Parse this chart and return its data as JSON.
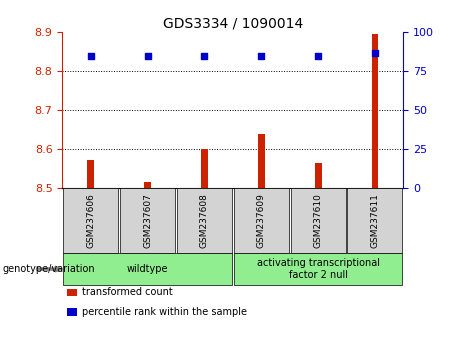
{
  "title": "GDS3334 / 1090014",
  "samples": [
    "GSM237606",
    "GSM237607",
    "GSM237608",
    "GSM237609",
    "GSM237610",
    "GSM237611"
  ],
  "red_bar_values": [
    8.572,
    8.515,
    8.598,
    8.638,
    8.562,
    8.895
  ],
  "blue_dot_values": [
    84.5,
    84.5,
    84.5,
    84.5,
    84.5,
    86.5
  ],
  "bar_baseline": 8.5,
  "ylim_left": [
    8.5,
    8.9
  ],
  "ylim_right": [
    0,
    100
  ],
  "yticks_left": [
    8.5,
    8.6,
    8.7,
    8.8,
    8.9
  ],
  "yticks_right": [
    0,
    25,
    50,
    75,
    100
  ],
  "groups_info": [
    {
      "label": "wildtype",
      "start": 0,
      "end": 3,
      "color": "#90EE90"
    },
    {
      "label": "activating transcriptional\nfactor 2 null",
      "start": 3,
      "end": 6,
      "color": "#90EE90"
    }
  ],
  "bar_color": "#cc2200",
  "dot_color": "#0000cc",
  "label_color_left": "#cc2200",
  "label_color_right": "#0000cc",
  "legend_items": [
    {
      "color": "#cc2200",
      "label": "transformed count"
    },
    {
      "color": "#0000cc",
      "label": "percentile rank within the sample"
    }
  ],
  "genotype_label": "genotype/variation",
  "plot_bg_color": "#ffffff",
  "sample_label_area_color": "#d3d3d3",
  "bar_width": 0.12,
  "dot_size": 22
}
